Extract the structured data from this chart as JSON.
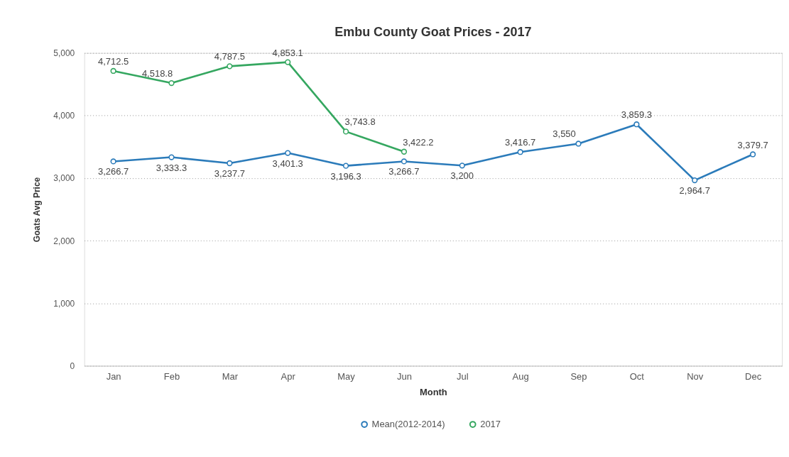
{
  "chart_data": {
    "type": "line",
    "title": "Embu County Goat Prices - 2017",
    "xlabel": "Month",
    "ylabel": "Goats Avg Price",
    "categories": [
      "Jan",
      "Feb",
      "Mar",
      "Apr",
      "May",
      "Jun",
      "Jul",
      "Aug",
      "Sep",
      "Oct",
      "Nov",
      "Dec"
    ],
    "series": [
      {
        "name": "Mean(2012-2014)",
        "color": "#2b7bba",
        "values": [
          3266.7,
          3333.3,
          3237.7,
          3401.3,
          3196.3,
          3266.7,
          3200,
          3416.7,
          3550,
          3859.3,
          2964.7,
          3379.7
        ],
        "value_labels": [
          "3,266.7",
          "3,333.3",
          "3,237.7",
          "3,401.3",
          "3,196.3",
          "3,266.7",
          "3,200",
          "3,416.7",
          "3,550",
          "3,859.3",
          "2,964.7",
          "3,379.7"
        ]
      },
      {
        "name": "2017",
        "color": "#35a760",
        "values": [
          4712.5,
          4518.8,
          4787.5,
          4853.1,
          3743.8,
          3422.2,
          null,
          null,
          null,
          null,
          null,
          null
        ],
        "value_labels": [
          "4,712.5",
          "4,518.8",
          "4,787.5",
          "4,853.1",
          "3,743.8",
          "3,422.2",
          null,
          null,
          null,
          null,
          null,
          null
        ]
      }
    ],
    "ylim": [
      0,
      5000
    ],
    "yticks": [
      0,
      {
        "value": 1000,
        "label": "1,000"
      },
      {
        "value": 2000,
        "label": "2,000"
      },
      {
        "value": 3000,
        "label": "3,000"
      },
      {
        "value": 4000,
        "label": "4,000"
      },
      {
        "value": 5000,
        "label": "5,000"
      }
    ],
    "grid": "y",
    "legend": "bottom",
    "marker": "circle",
    "line_style": "solid"
  }
}
